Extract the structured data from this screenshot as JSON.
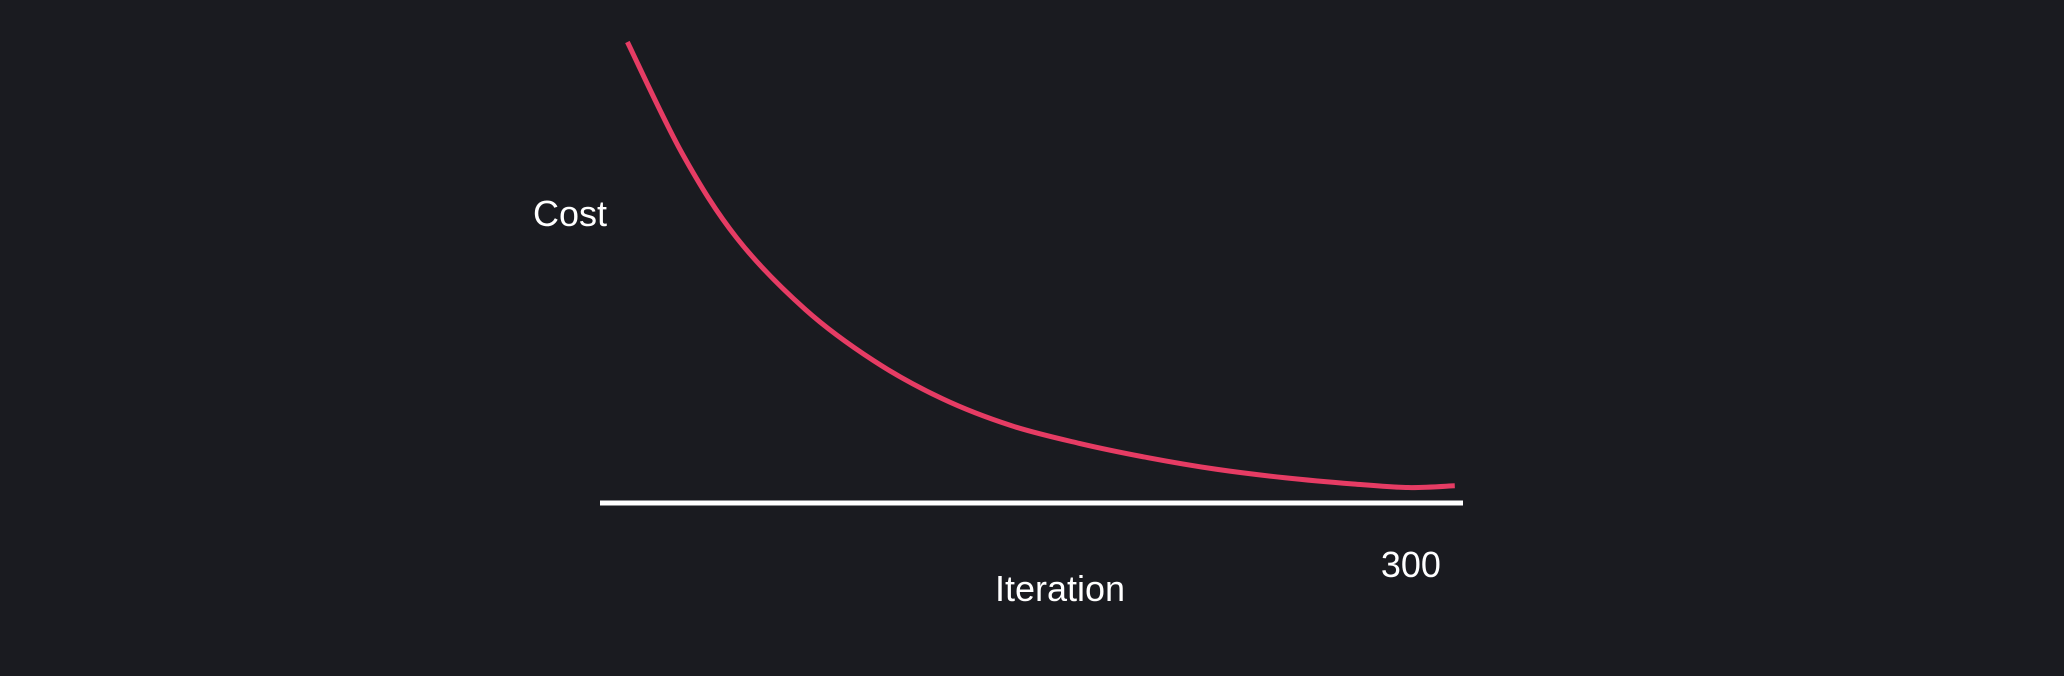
{
  "chart_data": {
    "type": "line",
    "title": "",
    "xlabel": "Iteration",
    "ylabel": "Cost",
    "x_ticks": [
      {
        "value": 300,
        "label": "300"
      }
    ],
    "xlim": [
      0,
      315
    ],
    "ylim": [
      0,
      100
    ],
    "grid": false,
    "legend": "none",
    "series": [
      {
        "x": [
          10,
          30,
          50,
          75,
          100,
          125,
          150,
          175,
          200,
          225,
          250,
          275,
          295,
          312
        ],
        "y": [
          100,
          75,
          56,
          40,
          28.5,
          20,
          14,
          10,
          6.8,
          4.2,
          2.3,
          0.9,
          0.1,
          0.5
        ]
      }
    ],
    "colors": {
      "background": "#1a1b20",
      "line": "#e63c64",
      "axis": "#ffffff",
      "text": "#ffffff"
    }
  }
}
